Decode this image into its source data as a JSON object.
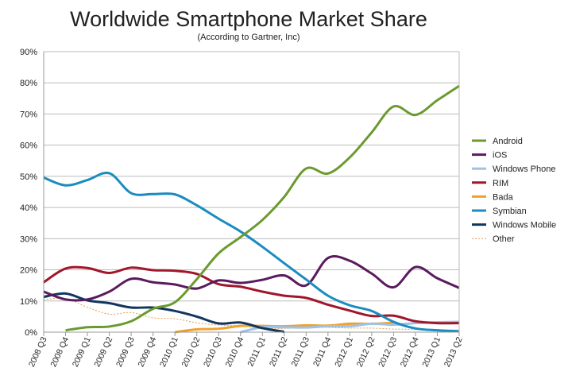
{
  "chart_data": {
    "type": "line",
    "title": "Worldwide Smartphone Market Share",
    "subtitle": "(According to Gartner, Inc)",
    "ylim": [
      0,
      90
    ],
    "yticks": [
      "0%",
      "10%",
      "20%",
      "30%",
      "40%",
      "50%",
      "60%",
      "70%",
      "80%",
      "90%"
    ],
    "grid": "horizontal",
    "legend_position": "right",
    "categories": [
      "2008 Q3",
      "2008 Q4",
      "2009 Q1",
      "2009 Q2",
      "2009 Q3",
      "2009 Q4",
      "2010 Q1",
      "2010 Q2",
      "2010 Q3",
      "2010 Q4",
      "2011 Q1",
      "2011 Q2",
      "2011 Q3",
      "2011 Q4",
      "2012 Q1",
      "2012 Q2",
      "2012 Q3",
      "2012 Q4",
      "2013 Q1",
      "2013 Q2"
    ],
    "series": [
      {
        "name": "Android",
        "color": "#6b9a2f",
        "values": [
          null,
          0.6,
          1.6,
          1.8,
          3.5,
          7.5,
          9.6,
          17,
          25.3,
          30.5,
          36,
          43.4,
          52.5,
          50.9,
          56.1,
          64.1,
          72.4,
          69.7,
          74.4,
          79
        ]
      },
      {
        "name": "iOS",
        "color": "#5a1a5e",
        "values": [
          13,
          10.5,
          10.5,
          13,
          17.1,
          16,
          15.3,
          14,
          16.6,
          15.8,
          16.8,
          18.2,
          15,
          23.8,
          22.9,
          18.8,
          14.4,
          20.9,
          17.3,
          14.2
        ]
      },
      {
        "name": "Windows Phone",
        "color": "#9dc3e6",
        "values": [
          null,
          null,
          null,
          null,
          null,
          null,
          null,
          null,
          null,
          0,
          1.6,
          1.6,
          1.5,
          1.9,
          1.9,
          2.7,
          2.4,
          2.9,
          3.2,
          3.3
        ]
      },
      {
        "name": "RIM",
        "color": "#a0162a",
        "values": [
          16,
          20.4,
          20.6,
          19,
          20.7,
          19.9,
          19.7,
          18.7,
          15.4,
          14.6,
          13,
          11.7,
          11,
          8.8,
          6.9,
          5.2,
          5.3,
          3.5,
          2.9,
          2.9
        ]
      },
      {
        "name": "Bada",
        "color": "#f0a030",
        "values": [
          null,
          null,
          null,
          null,
          null,
          null,
          0,
          0.9,
          1.1,
          2,
          2,
          1.9,
          2.2,
          2.1,
          2.7,
          2.7,
          3,
          null,
          null,
          null
        ]
      },
      {
        "name": "Symbian",
        "color": "#1a8cc0",
        "values": [
          49.6,
          47.1,
          48.8,
          51,
          44.6,
          44.3,
          44.2,
          40.7,
          36.4,
          32.3,
          27.4,
          22.1,
          16.9,
          11.7,
          8.6,
          6.8,
          3.3,
          1.2,
          0.6,
          0.3
        ]
      },
      {
        "name": "Windows Mobile",
        "color": "#12365e",
        "values": [
          11.3,
          12.4,
          10.2,
          9.3,
          7.9,
          7.9,
          6.8,
          5,
          2.8,
          3.1,
          1.3,
          0.1,
          null,
          null,
          null,
          null,
          null,
          null,
          null,
          null
        ]
      },
      {
        "name": "Other",
        "color": "#e0a050",
        "dashed": true,
        "values": [
          10.4,
          10.8,
          8,
          5.8,
          6.3,
          4.6,
          4.3,
          3,
          2.3,
          2,
          1.3,
          1.2,
          1.5,
          1.5,
          1.3,
          1.3,
          1,
          0.9,
          0.7,
          0.7
        ]
      }
    ]
  }
}
